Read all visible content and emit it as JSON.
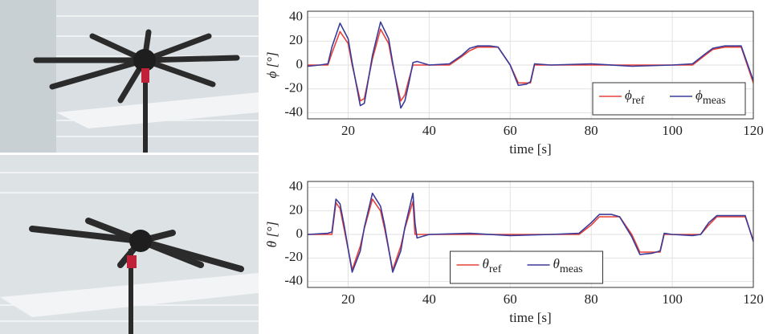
{
  "chart_data": [
    {
      "type": "line",
      "xlabel": "time [s]",
      "ylabel": "ϕ [°]",
      "x": [
        10,
        13,
        15,
        16,
        18,
        20,
        21,
        23,
        24,
        26,
        28,
        30,
        31,
        33,
        34,
        35,
        36,
        37,
        40,
        45,
        48,
        50,
        52,
        55,
        57,
        60,
        62,
        64,
        65,
        66,
        70,
        80,
        90,
        100,
        105,
        108,
        110,
        113,
        117,
        120
      ],
      "series": [
        {
          "name": "ϕref",
          "color": "#e8413a",
          "values": [
            0,
            0,
            0,
            10,
            28,
            18,
            0,
            -30,
            -28,
            5,
            30,
            18,
            0,
            -30,
            -25,
            -12,
            0,
            0,
            0,
            0,
            7,
            12,
            15,
            15,
            15,
            0,
            -15,
            -15,
            -15,
            0,
            0,
            0,
            0,
            0,
            0,
            8,
            13,
            15,
            15,
            -15
          ]
        },
        {
          "name": "ϕmeas",
          "color": "#3b3b9a",
          "values": [
            -1,
            0,
            1,
            15,
            35,
            22,
            2,
            -34,
            -32,
            8,
            36,
            22,
            2,
            -36,
            -30,
            -15,
            2,
            3,
            0,
            1,
            8,
            14,
            16,
            16,
            15,
            0,
            -17,
            -16,
            -14,
            1,
            0,
            1,
            -1,
            0,
            1,
            9,
            14,
            16,
            16,
            -13
          ]
        }
      ],
      "xlim": [
        10,
        120
      ],
      "ylim": [
        -45,
        45
      ],
      "xticks": [
        20,
        40,
        60,
        80,
        100,
        120
      ],
      "yticks": [
        40,
        20,
        0,
        -20,
        -40
      ],
      "grid": true,
      "legend": "lower right"
    },
    {
      "type": "line",
      "xlabel": "time [s]",
      "ylabel": "θ [°]",
      "x": [
        10,
        15,
        16,
        17,
        18,
        19,
        21,
        23,
        24,
        26,
        28,
        29,
        31,
        33,
        34,
        36,
        36.5,
        37,
        40,
        50,
        60,
        70,
        77,
        80,
        82,
        85,
        87,
        90,
        92,
        95,
        97,
        98,
        100,
        105,
        107,
        109,
        111,
        115,
        118,
        120
      ],
      "series": [
        {
          "name": "θref",
          "color": "#e8413a",
          "values": [
            0,
            0,
            0,
            27,
            22,
            5,
            -30,
            -10,
            5,
            30,
            20,
            5,
            -30,
            -10,
            5,
            28,
            0,
            0,
            0,
            0,
            0,
            0,
            0,
            8,
            15,
            15,
            15,
            0,
            -15,
            -15,
            -15,
            0,
            0,
            0,
            0,
            8,
            15,
            15,
            15,
            -5
          ]
        },
        {
          "name": "θmeas",
          "color": "#3b3b9a",
          "values": [
            0,
            1,
            2,
            30,
            26,
            8,
            -32,
            -14,
            6,
            35,
            24,
            8,
            -32,
            -14,
            6,
            35,
            10,
            -3,
            0,
            1,
            -1,
            0,
            1,
            10,
            17,
            17,
            15,
            -2,
            -17,
            -16,
            -14,
            1,
            0,
            -1,
            0,
            10,
            16,
            16,
            16,
            -6
          ]
        }
      ],
      "xlim": [
        10,
        120
      ],
      "ylim": [
        -45,
        45
      ],
      "xticks": [
        20,
        40,
        60,
        80,
        100,
        120
      ],
      "yticks": [
        40,
        20,
        0,
        -20,
        -40
      ],
      "grid": true,
      "legend": "lower center"
    }
  ]
}
